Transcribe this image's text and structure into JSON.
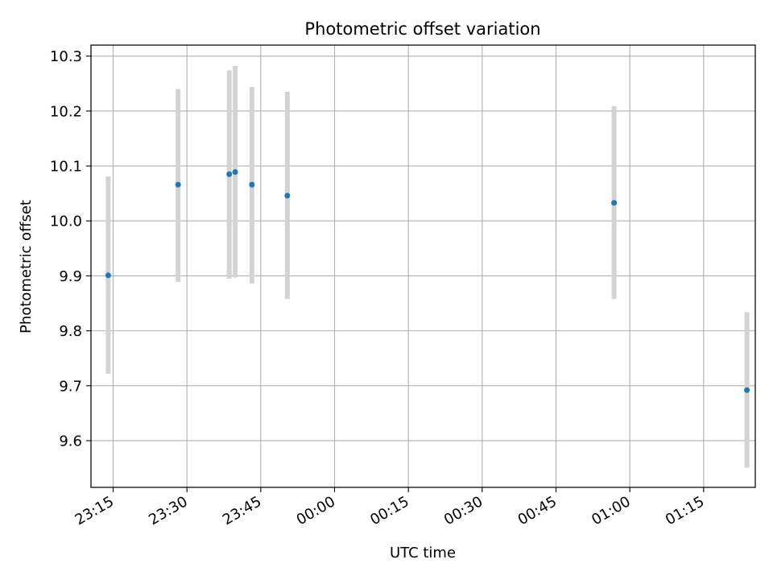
{
  "chart_data": {
    "type": "scatter",
    "title": "Photometric offset variation",
    "xlabel": "UTC time",
    "ylabel": "Photometric offset",
    "x_axis": {
      "kind": "time",
      "range": [
        "23:10:30",
        "01:25:30"
      ],
      "tick_labels": [
        "23:15",
        "23:30",
        "23:45",
        "00:00",
        "00:15",
        "00:30",
        "00:45",
        "01:00",
        "01:15"
      ]
    },
    "y_axis": {
      "range": [
        9.515,
        10.32
      ],
      "ticks": [
        9.6,
        9.7,
        9.8,
        9.9,
        10.0,
        10.1,
        10.2,
        10.3
      ],
      "tick_labels": [
        "9.6",
        "9.7",
        "9.8",
        "9.9",
        "10.0",
        "10.1",
        "10.2",
        "10.3"
      ]
    },
    "grid": true,
    "colors": {
      "marker": "#1f77b4",
      "errorbar": "#d3d3d3",
      "grid": "#b0b0b0"
    },
    "points": [
      {
        "time": "23:14:00",
        "y": 9.901,
        "y_low": 9.722,
        "y_high": 10.081
      },
      {
        "time": "23:28:12",
        "y": 10.066,
        "y_low": 9.889,
        "y_high": 10.24
      },
      {
        "time": "23:38:36",
        "y": 10.085,
        "y_low": 9.895,
        "y_high": 10.274
      },
      {
        "time": "23:39:48",
        "y": 10.089,
        "y_low": 9.897,
        "y_high": 10.282
      },
      {
        "time": "23:43:12",
        "y": 10.066,
        "y_low": 9.886,
        "y_high": 10.244
      },
      {
        "time": "23:50:24",
        "y": 10.046,
        "y_low": 9.858,
        "y_high": 10.235
      },
      {
        "time": "00:56:48",
        "y": 10.033,
        "y_low": 9.858,
        "y_high": 10.209
      },
      {
        "time": "01:23:48",
        "y": 9.692,
        "y_low": 9.551,
        "y_high": 9.834
      }
    ]
  }
}
